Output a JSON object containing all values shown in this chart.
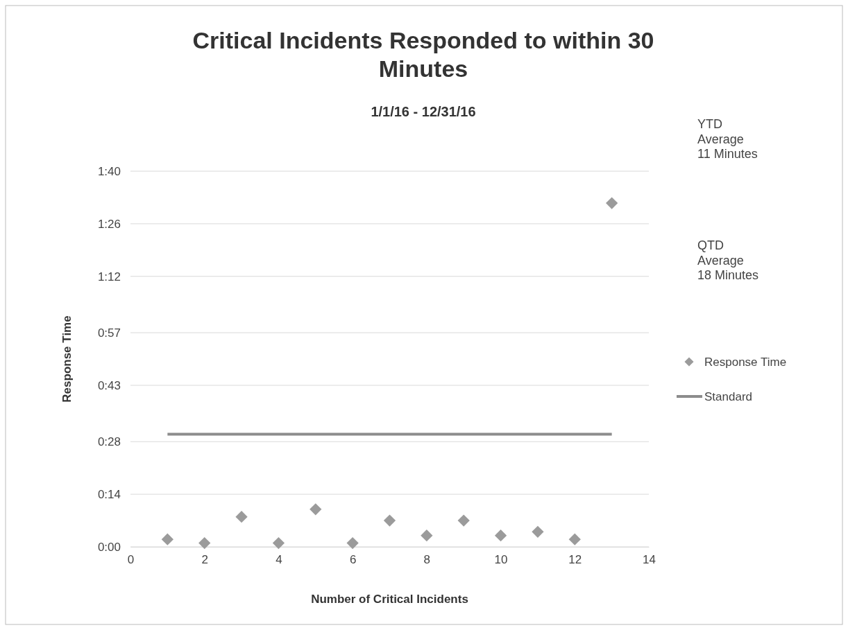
{
  "chart_data": {
    "type": "scatter",
    "title": "Critical Incidents Responded to within 30 Minutes",
    "subtitle": "1/1/16 - 12/31/16",
    "xlabel": "Number of Critical Incidents",
    "ylabel": "Response Time",
    "xlim": [
      0,
      14
    ],
    "xticks": [
      0,
      2,
      4,
      6,
      8,
      10,
      12,
      14
    ],
    "ylim": [
      0,
      100
    ],
    "yticks": [
      {
        "value": 0,
        "label": "0:00"
      },
      {
        "value": 14,
        "label": "0:14"
      },
      {
        "value": 28,
        "label": "0:28"
      },
      {
        "value": 43,
        "label": "0:43"
      },
      {
        "value": 57,
        "label": "0:57"
      },
      {
        "value": 72,
        "label": "1:12"
      },
      {
        "value": 86,
        "label": "1:26"
      },
      {
        "value": 100,
        "label": "1:40"
      }
    ],
    "grid": "y",
    "legend": "right",
    "annotations": [
      "YTD Average 11 Minutes",
      "QTD Average 18 Minutes"
    ],
    "series": [
      {
        "name": "Response Time",
        "marker": "diamond",
        "color": "#9b9b9b",
        "x": [
          1,
          2,
          3,
          4,
          5,
          6,
          7,
          8,
          9,
          10,
          11,
          12,
          13
        ],
        "values": [
          2,
          1,
          8,
          1,
          10,
          1,
          7,
          3,
          7,
          3,
          4,
          2,
          91.5
        ]
      },
      {
        "name": "Standard",
        "type": "line",
        "marker": "none",
        "line_style": "solid",
        "color": "#8c8c8c",
        "x": [
          1,
          13
        ],
        "values": [
          30,
          30
        ]
      }
    ]
  }
}
